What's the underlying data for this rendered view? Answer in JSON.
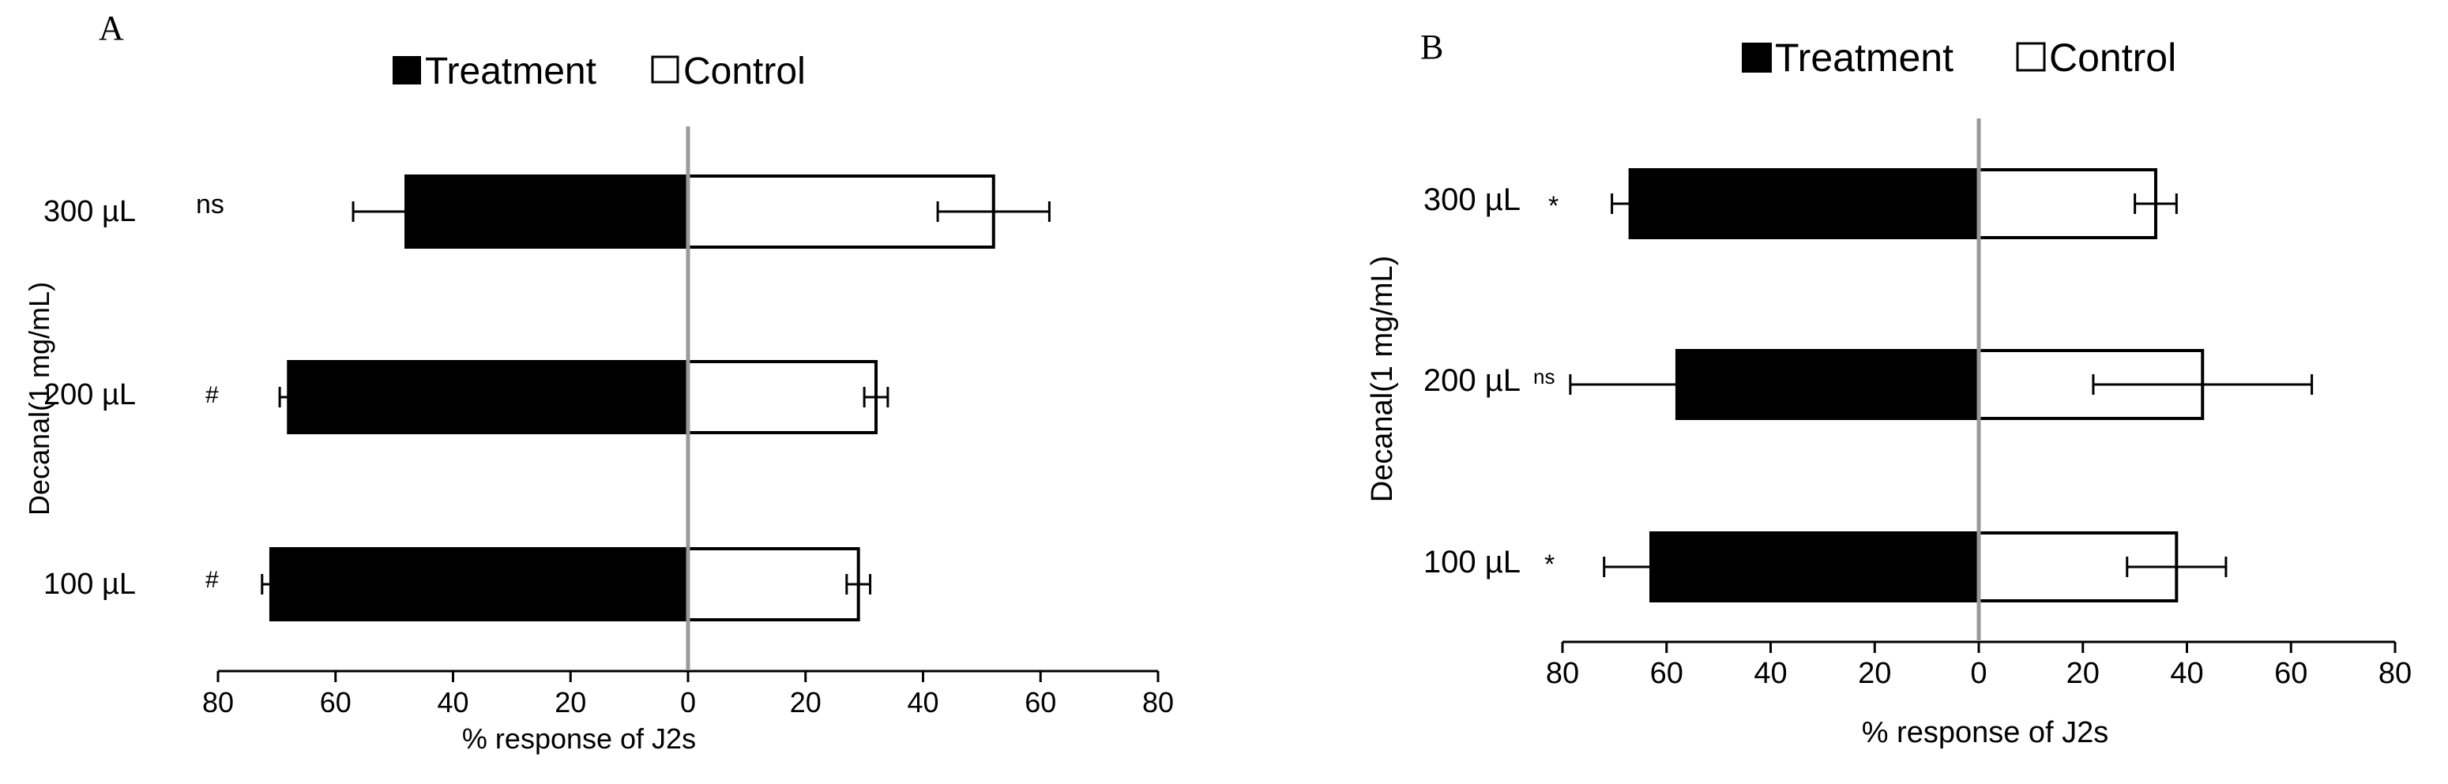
{
  "chart_data": [
    {
      "type": "bar",
      "orientation": "horizontal-diverging",
      "panel": "A",
      "ylabel": "Decanal(1 mg/mL)",
      "xlabel": "% response of J2s",
      "categories": [
        "300 µL",
        "200 µL",
        "100 µL"
      ],
      "significance": [
        "ns",
        "#",
        "#"
      ],
      "xlim": [
        -80,
        80
      ],
      "xticks": [
        -80,
        -60,
        -40,
        -20,
        0,
        20,
        40,
        60,
        80
      ],
      "xtick_labels": [
        "80",
        "60",
        "40",
        "20",
        "0",
        "20",
        "40",
        "60",
        "80"
      ],
      "legend": "top-center",
      "grid": false,
      "series": [
        {
          "name": "Treatment",
          "color": "#000000",
          "direction": "left",
          "values": [
            48,
            68,
            71
          ],
          "errors": [
            9,
            1.5,
            1.5
          ]
        },
        {
          "name": "Control",
          "color": "#ffffff",
          "direction": "right",
          "values": [
            52,
            32,
            29
          ],
          "errors": [
            9.5,
            2,
            2
          ]
        }
      ]
    },
    {
      "type": "bar",
      "orientation": "horizontal-diverging",
      "panel": "B",
      "ylabel": "Decanal(1 mg/mL)",
      "xlabel": "% response of J2s",
      "categories": [
        "300 µL",
        "200 µL",
        "100 µL"
      ],
      "significance": [
        "*",
        "ns",
        "*"
      ],
      "xlim": [
        -80,
        80
      ],
      "xticks": [
        -80,
        -60,
        -40,
        -20,
        0,
        20,
        40,
        60,
        80
      ],
      "xtick_labels": [
        "80",
        "60",
        "40",
        "20",
        "0",
        "20",
        "40",
        "60",
        "80"
      ],
      "legend": "top-center",
      "grid": false,
      "series": [
        {
          "name": "Treatment",
          "color": "#000000",
          "direction": "left",
          "values": [
            67,
            58,
            63
          ],
          "errors": [
            3.5,
            20.5,
            9
          ]
        },
        {
          "name": "Control",
          "color": "#ffffff",
          "direction": "right",
          "values": [
            34,
            43,
            38
          ],
          "errors": [
            4,
            21,
            9.5
          ]
        }
      ]
    }
  ],
  "axis_color": "#999999"
}
